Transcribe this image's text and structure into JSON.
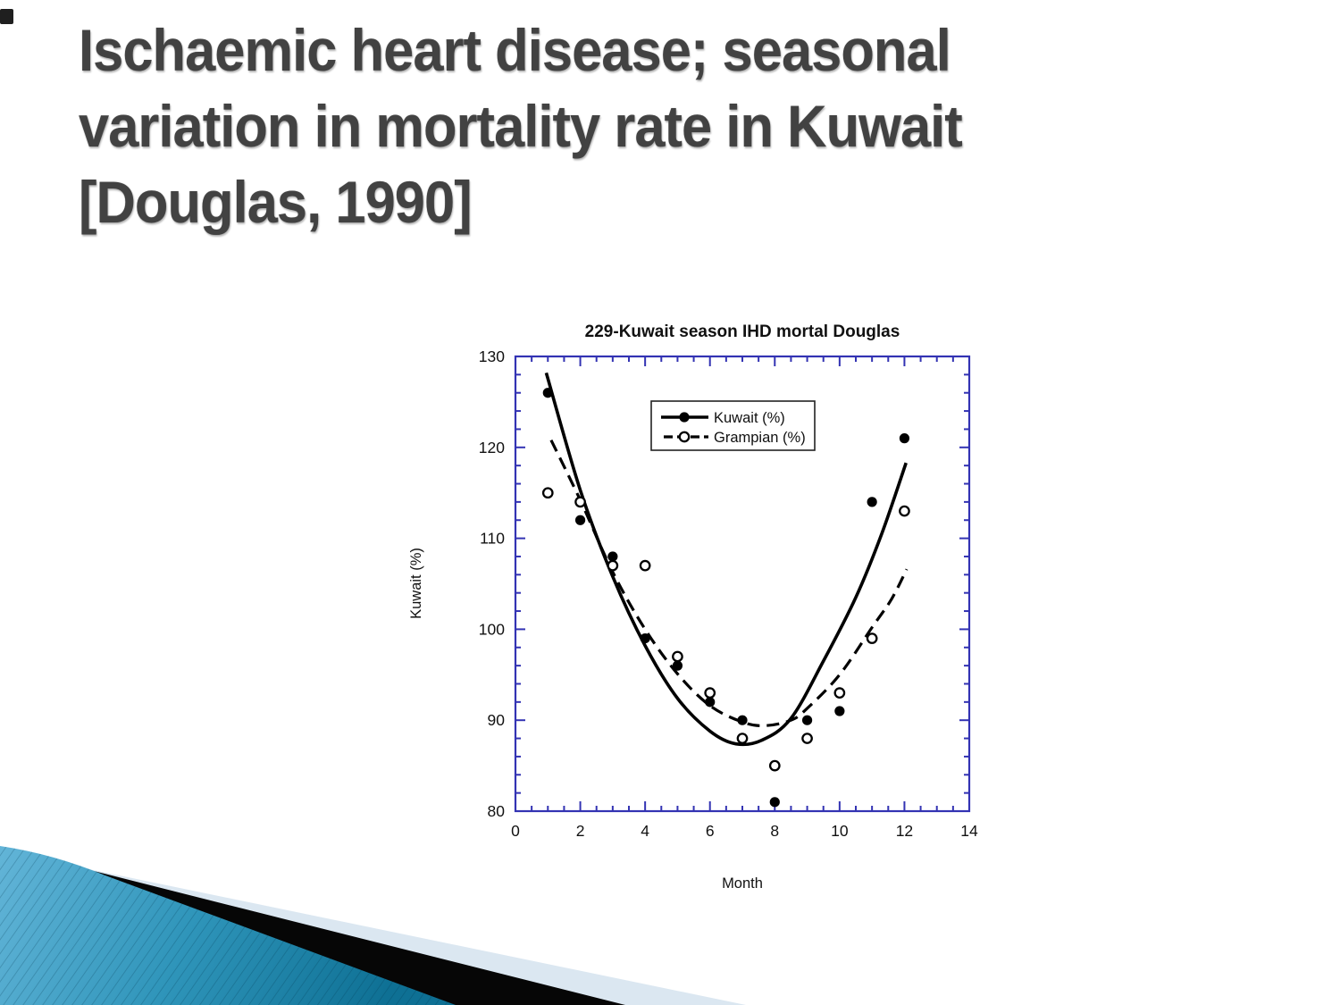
{
  "slide": {
    "title_lines": [
      "Ischaemic heart disease; seasonal",
      "variation in mortality rate in Kuwait",
      "[Douglas, 1990]"
    ],
    "title_color": "#424242",
    "background": "#ffffff"
  },
  "decoration": {
    "teal_light": "#63b5d8",
    "teal_mid": "#2f95ba",
    "teal_dark": "#0e7094",
    "stripe_color": "rgba(0,50,75,0.28)",
    "black_band": "#060606",
    "pale_band": "#dbe7f1",
    "corner_square": "#1f1f1f"
  },
  "chart_data": {
    "type": "scatter",
    "title": "229-Kuwait season IHD mortal Douglas",
    "xlabel": "Month",
    "ylabel": "Kuwait (%)",
    "xlim": [
      0,
      14
    ],
    "ylim": [
      80,
      130
    ],
    "x_major_ticks": [
      0,
      2,
      4,
      6,
      8,
      10,
      12,
      14
    ],
    "x_minor_step": 0.5,
    "y_major_ticks": [
      80,
      90,
      100,
      110,
      120,
      130
    ],
    "y_minor_step": 2,
    "axis_color": "#3333b3",
    "text_color": "#111111",
    "grid": "off",
    "legend_position": "top-center-inside",
    "months": [
      1,
      2,
      3,
      4,
      5,
      6,
      7,
      8,
      9,
      10,
      11,
      12
    ],
    "series": [
      {
        "name": "Kuwait (%)",
        "marker": "filled-circle",
        "line": "solid",
        "color": "#000000",
        "values": [
          126,
          112,
          108,
          99,
          96,
          92,
          90,
          81,
          90,
          91,
          114,
          121
        ],
        "fit_curve": [
          [
            0.95,
            128.2
          ],
          [
            2,
            115.3
          ],
          [
            3,
            105.8
          ],
          [
            4,
            98.2
          ],
          [
            5,
            92.4
          ],
          [
            6,
            88.8
          ],
          [
            6.8,
            87.4
          ],
          [
            7.6,
            87.8
          ],
          [
            8.5,
            90.2
          ],
          [
            9.5,
            96.5
          ],
          [
            10.5,
            103.5
          ],
          [
            11.3,
            110.5
          ],
          [
            12.05,
            118.3
          ]
        ]
      },
      {
        "name": "Grampian (%)",
        "marker": "open-circle",
        "line": "dashed",
        "color": "#000000",
        "values": [
          115,
          114,
          107,
          107,
          97,
          93,
          88,
          85,
          88,
          93,
          99,
          113
        ],
        "fit_curve": [
          [
            1.1,
            120.8
          ],
          [
            2,
            114.2
          ],
          [
            3,
            106.3
          ],
          [
            4,
            100.0
          ],
          [
            5,
            95.1
          ],
          [
            6,
            91.6
          ],
          [
            7,
            89.8
          ],
          [
            7.7,
            89.4
          ],
          [
            8.5,
            90.0
          ],
          [
            9,
            91.3
          ],
          [
            10,
            95.0
          ],
          [
            11,
            100.2
          ],
          [
            11.6,
            103.3
          ],
          [
            12.07,
            106.6
          ]
        ]
      }
    ]
  }
}
